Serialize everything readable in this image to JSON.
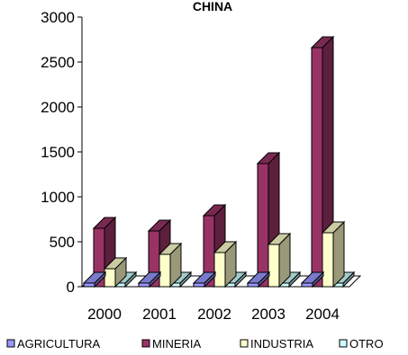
{
  "chart_data": {
    "type": "bar",
    "title": "CHINA",
    "categories": [
      "2000",
      "2001",
      "2002",
      "2003",
      "2004"
    ],
    "series": [
      {
        "name": "AGRICULTURA",
        "values": [
          0,
          0,
          0,
          0,
          0
        ],
        "color": "#9999ff"
      },
      {
        "name": "MINERIA",
        "values": [
          650,
          620,
          790,
          1370,
          2660
        ],
        "color": "#993366"
      },
      {
        "name": "INDUSTRIA",
        "values": [
          200,
          360,
          380,
          470,
          600
        ],
        "color": "#ffffcc"
      },
      {
        "name": "OTRO",
        "values": [
          0,
          0,
          0,
          0,
          0
        ],
        "color": "#ccffff"
      }
    ],
    "ylim": [
      0,
      3000
    ],
    "yticks": [
      "0",
      "500",
      "1000",
      "1500",
      "2000",
      "2500",
      "3000"
    ],
    "legend_position": "bottom",
    "grid": false
  }
}
